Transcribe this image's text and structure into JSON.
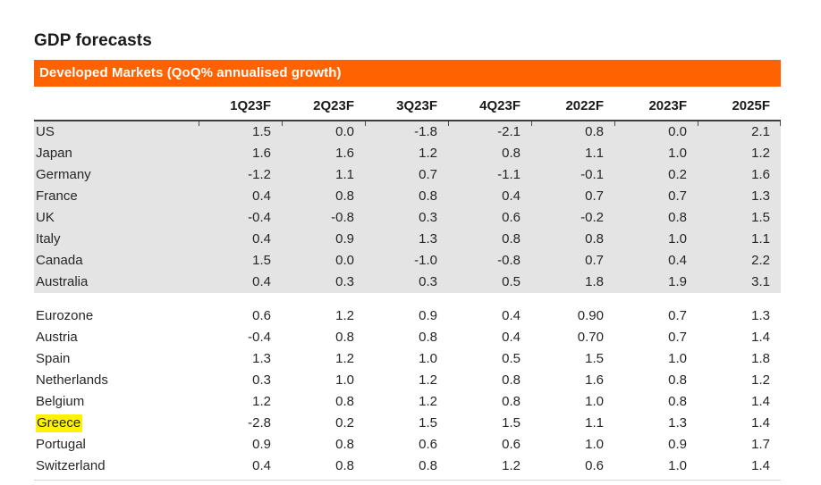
{
  "chart_data": {
    "type": "table",
    "title": "GDP forecasts",
    "subtitle": "Developed Markets (QoQ% annualised growth)",
    "columns": [
      "1Q23F",
      "2Q23F",
      "3Q23F",
      "4Q23F",
      "2022F",
      "2023F",
      "2025F"
    ],
    "groups": [
      {
        "name": "developed-markets-block",
        "shaded": true,
        "rows": [
          {
            "label": "US",
            "values": [
              "1.5",
              "0.0",
              "-1.8",
              "-2.1",
              "0.8",
              "0.0",
              "2.1"
            ]
          },
          {
            "label": "Japan",
            "values": [
              "1.6",
              "1.6",
              "1.2",
              "0.8",
              "1.1",
              "1.0",
              "1.2"
            ]
          },
          {
            "label": "Germany",
            "values": [
              "-1.2",
              "1.1",
              "0.7",
              "-1.1",
              "-0.1",
              "0.2",
              "1.6"
            ]
          },
          {
            "label": "France",
            "values": [
              "0.4",
              "0.8",
              "0.8",
              "0.4",
              "0.7",
              "0.7",
              "1.3"
            ]
          },
          {
            "label": "UK",
            "values": [
              "-0.4",
              "-0.8",
              "0.3",
              "0.6",
              "-0.2",
              "0.8",
              "1.5"
            ]
          },
          {
            "label": "Italy",
            "values": [
              "0.4",
              "0.9",
              "1.3",
              "0.8",
              "0.8",
              "1.0",
              "1.1"
            ]
          },
          {
            "label": "Canada",
            "values": [
              "1.5",
              "0.0",
              "-1.0",
              "-0.8",
              "0.7",
              "0.4",
              "2.2"
            ]
          },
          {
            "label": "Australia",
            "values": [
              "0.4",
              "0.3",
              "0.3",
              "0.5",
              "1.8",
              "1.9",
              "3.1"
            ]
          }
        ]
      },
      {
        "name": "european-countries-block",
        "shaded": false,
        "rows": [
          {
            "label": "Eurozone",
            "values": [
              "0.6",
              "1.2",
              "0.9",
              "0.4",
              "0.90",
              "0.7",
              "1.3"
            ]
          },
          {
            "label": "Austria",
            "values": [
              "-0.4",
              "0.8",
              "0.8",
              "0.4",
              "0.70",
              "0.7",
              "1.4"
            ]
          },
          {
            "label": "Spain",
            "values": [
              "1.3",
              "1.2",
              "1.0",
              "0.5",
              "1.5",
              "1.0",
              "1.8"
            ]
          },
          {
            "label": "Netherlands",
            "values": [
              "0.3",
              "1.0",
              "1.2",
              "0.8",
              "1.6",
              "0.8",
              "1.2"
            ]
          },
          {
            "label": "Belgium",
            "values": [
              "1.2",
              "0.8",
              "1.2",
              "0.8",
              "1.0",
              "0.8",
              "1.4"
            ]
          },
          {
            "label": "Greece",
            "highlight": true,
            "values": [
              "-2.8",
              "0.2",
              "1.5",
              "1.5",
              "1.1",
              "1.3",
              "1.4"
            ]
          },
          {
            "label": "Portugal",
            "values": [
              "0.9",
              "0.8",
              "0.6",
              "0.6",
              "1.0",
              "0.9",
              "1.7"
            ]
          },
          {
            "label": "Switzerland",
            "values": [
              "0.4",
              "0.8",
              "0.8",
              "1.2",
              "0.6",
              "1.0",
              "1.4"
            ]
          }
        ]
      }
    ],
    "colors": {
      "banner_background": "#FF6200",
      "banner_text": "#FFFFFF",
      "shaded_rows": "#E4E4E4",
      "highlight": "#FFF200",
      "header_rule": "#3D3D3D"
    },
    "layout": {
      "spacer_between_groups": true,
      "values_alignment": "right"
    }
  }
}
